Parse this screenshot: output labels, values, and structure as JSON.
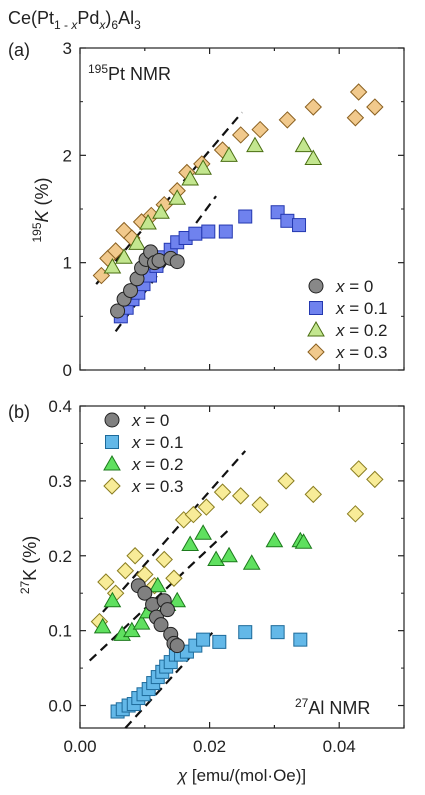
{
  "compound": {
    "prefix": "Ce(Pt",
    "sub1": "1 - ",
    "x1": "x",
    "mid": "Pd",
    "x2": "x",
    "mid2": ")",
    "sub2": "6",
    "end": "Al",
    "sub3": "3"
  },
  "chart_data": [
    {
      "type": "scatter",
      "panel_label": "(a)",
      "title_sup": "195",
      "title_main": "Pt NMR",
      "ylabel_sup": "195",
      "ylabel_main": "K",
      "ylabel_unit": " (%)",
      "xlim": [
        0,
        0.05
      ],
      "ylim": [
        0,
        3
      ],
      "yticks": [
        0,
        1,
        2,
        3
      ],
      "ytick_labels": [
        "0",
        "1",
        "2",
        "3"
      ],
      "legend_position": "bottom-right",
      "series": [
        {
          "name": "x = 0",
          "marker": "circle",
          "color": "#888888",
          "x": [
            0.0058,
            0.0068,
            0.0078,
            0.0088,
            0.0095,
            0.0102,
            0.0109,
            0.0115,
            0.0122,
            0.014,
            0.015
          ],
          "y": [
            0.55,
            0.66,
            0.74,
            0.85,
            0.95,
            1.03,
            1.1,
            1.0,
            1.02,
            1.04,
            1.01
          ]
        },
        {
          "name": "x = 0.1",
          "marker": "square",
          "color": "#6f82ee",
          "x": [
            0.0063,
            0.0072,
            0.0081,
            0.009,
            0.0098,
            0.0108,
            0.0118,
            0.0129,
            0.014,
            0.015,
            0.0163,
            0.0178,
            0.0198,
            0.0225,
            0.0255,
            0.0305,
            0.032,
            0.0338
          ],
          "y": [
            0.5,
            0.58,
            0.66,
            0.72,
            0.8,
            0.88,
            0.97,
            1.05,
            1.12,
            1.19,
            1.23,
            1.27,
            1.29,
            1.29,
            1.43,
            1.47,
            1.39,
            1.35
          ]
        },
        {
          "name": "x = 0.2",
          "marker": "triangle",
          "color": "#c3e68f",
          "x": [
            0.005,
            0.0068,
            0.0088,
            0.0105,
            0.0125,
            0.015,
            0.017,
            0.019,
            0.023,
            0.027,
            0.0345,
            0.036
          ],
          "y": [
            0.96,
            1.05,
            1.18,
            1.37,
            1.47,
            1.6,
            1.78,
            1.88,
            2.0,
            2.09,
            2.09,
            1.97
          ]
        },
        {
          "name": "x = 0.3",
          "marker": "diamond",
          "color": "#f1c98c",
          "x": [
            0.0033,
            0.0043,
            0.0055,
            0.0068,
            0.008,
            0.0095,
            0.011,
            0.013,
            0.015,
            0.0165,
            0.0188,
            0.022,
            0.0248,
            0.0278,
            0.032,
            0.036,
            0.0425,
            0.043,
            0.0455
          ],
          "y": [
            0.88,
            1.04,
            1.11,
            1.3,
            1.23,
            1.38,
            1.44,
            1.54,
            1.67,
            1.84,
            1.92,
            2.05,
            2.19,
            2.24,
            2.33,
            2.45,
            2.35,
            2.59,
            2.45
          ]
        }
      ],
      "fit_lines": [
        {
          "x": [
            0.0055,
            0.021
          ],
          "y": [
            0.36,
            1.62
          ]
        },
        {
          "x": [
            0.0025,
            0.025
          ],
          "y": [
            0.8,
            2.4
          ]
        }
      ]
    },
    {
      "type": "scatter",
      "panel_label": "(b)",
      "title_sup": "27",
      "title_main": "Al NMR",
      "ylabel_sup": "27",
      "ylabel_main": "K (%)",
      "xlabel_sym": "χ",
      "xlabel_unit": " [emu/(mol·Oe)]",
      "xlim": [
        0,
        0.05
      ],
      "ylim": [
        -0.03,
        0.4
      ],
      "xticks": [
        0.0,
        0.02,
        0.04
      ],
      "xtick_labels": [
        "0.00",
        "0.02",
        "0.04"
      ],
      "yticks": [
        0.0,
        0.1,
        0.2,
        0.3,
        0.4
      ],
      "ytick_labels": [
        "0.0",
        "0.1",
        "0.2",
        "0.3",
        "0.4"
      ],
      "legend_position": "top-left",
      "series": [
        {
          "name": "x = 0",
          "marker": "circle",
          "color": "#808080",
          "x": [
            0.009,
            0.01,
            0.0112,
            0.0118,
            0.0125,
            0.013,
            0.0135,
            0.014,
            0.0145,
            0.015
          ],
          "y": [
            0.16,
            0.15,
            0.135,
            0.118,
            0.108,
            0.14,
            0.128,
            0.095,
            0.083,
            0.08
          ]
        },
        {
          "name": "x = 0.1",
          "marker": "square",
          "color": "#63b8e8",
          "x": [
            0.0058,
            0.0066,
            0.0075,
            0.0083,
            0.009,
            0.0098,
            0.0106,
            0.0113,
            0.012,
            0.0127,
            0.0133,
            0.014,
            0.0148,
            0.0156,
            0.0165,
            0.0178,
            0.019,
            0.0215,
            0.0255,
            0.0305,
            0.034
          ],
          "y": [
            -0.008,
            -0.005,
            0.0,
            0.002,
            0.01,
            0.015,
            0.022,
            0.03,
            0.038,
            0.045,
            0.052,
            0.058,
            0.068,
            0.068,
            0.072,
            0.08,
            0.088,
            0.085,
            0.098,
            0.098,
            0.088
          ]
        },
        {
          "name": "x = 0.2",
          "marker": "triangle",
          "color": "#5fe05f",
          "x": [
            0.0035,
            0.005,
            0.0065,
            0.008,
            0.0095,
            0.0105,
            0.012,
            0.0135,
            0.015,
            0.017,
            0.019,
            0.021,
            0.023,
            0.0265,
            0.03,
            0.034,
            0.0345
          ],
          "y": [
            0.105,
            0.14,
            0.095,
            0.1,
            0.11,
            0.125,
            0.16,
            0.135,
            0.14,
            0.215,
            0.23,
            0.195,
            0.2,
            0.19,
            0.22,
            0.22,
            0.218
          ]
        },
        {
          "name": "x = 0.3",
          "marker": "diamond",
          "color": "#f8ec98",
          "x": [
            0.003,
            0.004,
            0.0055,
            0.007,
            0.0085,
            0.01,
            0.0115,
            0.013,
            0.0145,
            0.016,
            0.0175,
            0.0195,
            0.022,
            0.0248,
            0.0278,
            0.0318,
            0.036,
            0.0425,
            0.043,
            0.0455
          ],
          "y": [
            0.112,
            0.165,
            0.15,
            0.18,
            0.2,
            0.175,
            0.16,
            0.195,
            0.17,
            0.248,
            0.255,
            0.265,
            0.285,
            0.28,
            0.268,
            0.3,
            0.282,
            0.256,
            0.316,
            0.302
          ]
        }
      ],
      "fit_lines": [
        {
          "x": [
            0.007,
            0.0205
          ],
          "y": [
            -0.03,
            0.098
          ]
        },
        {
          "x": [
            0.002,
            0.0255
          ],
          "y": [
            0.11,
            0.34
          ]
        },
        {
          "x": [
            0.0015,
            0.023
          ],
          "y": [
            0.06,
            0.235
          ]
        }
      ]
    }
  ]
}
